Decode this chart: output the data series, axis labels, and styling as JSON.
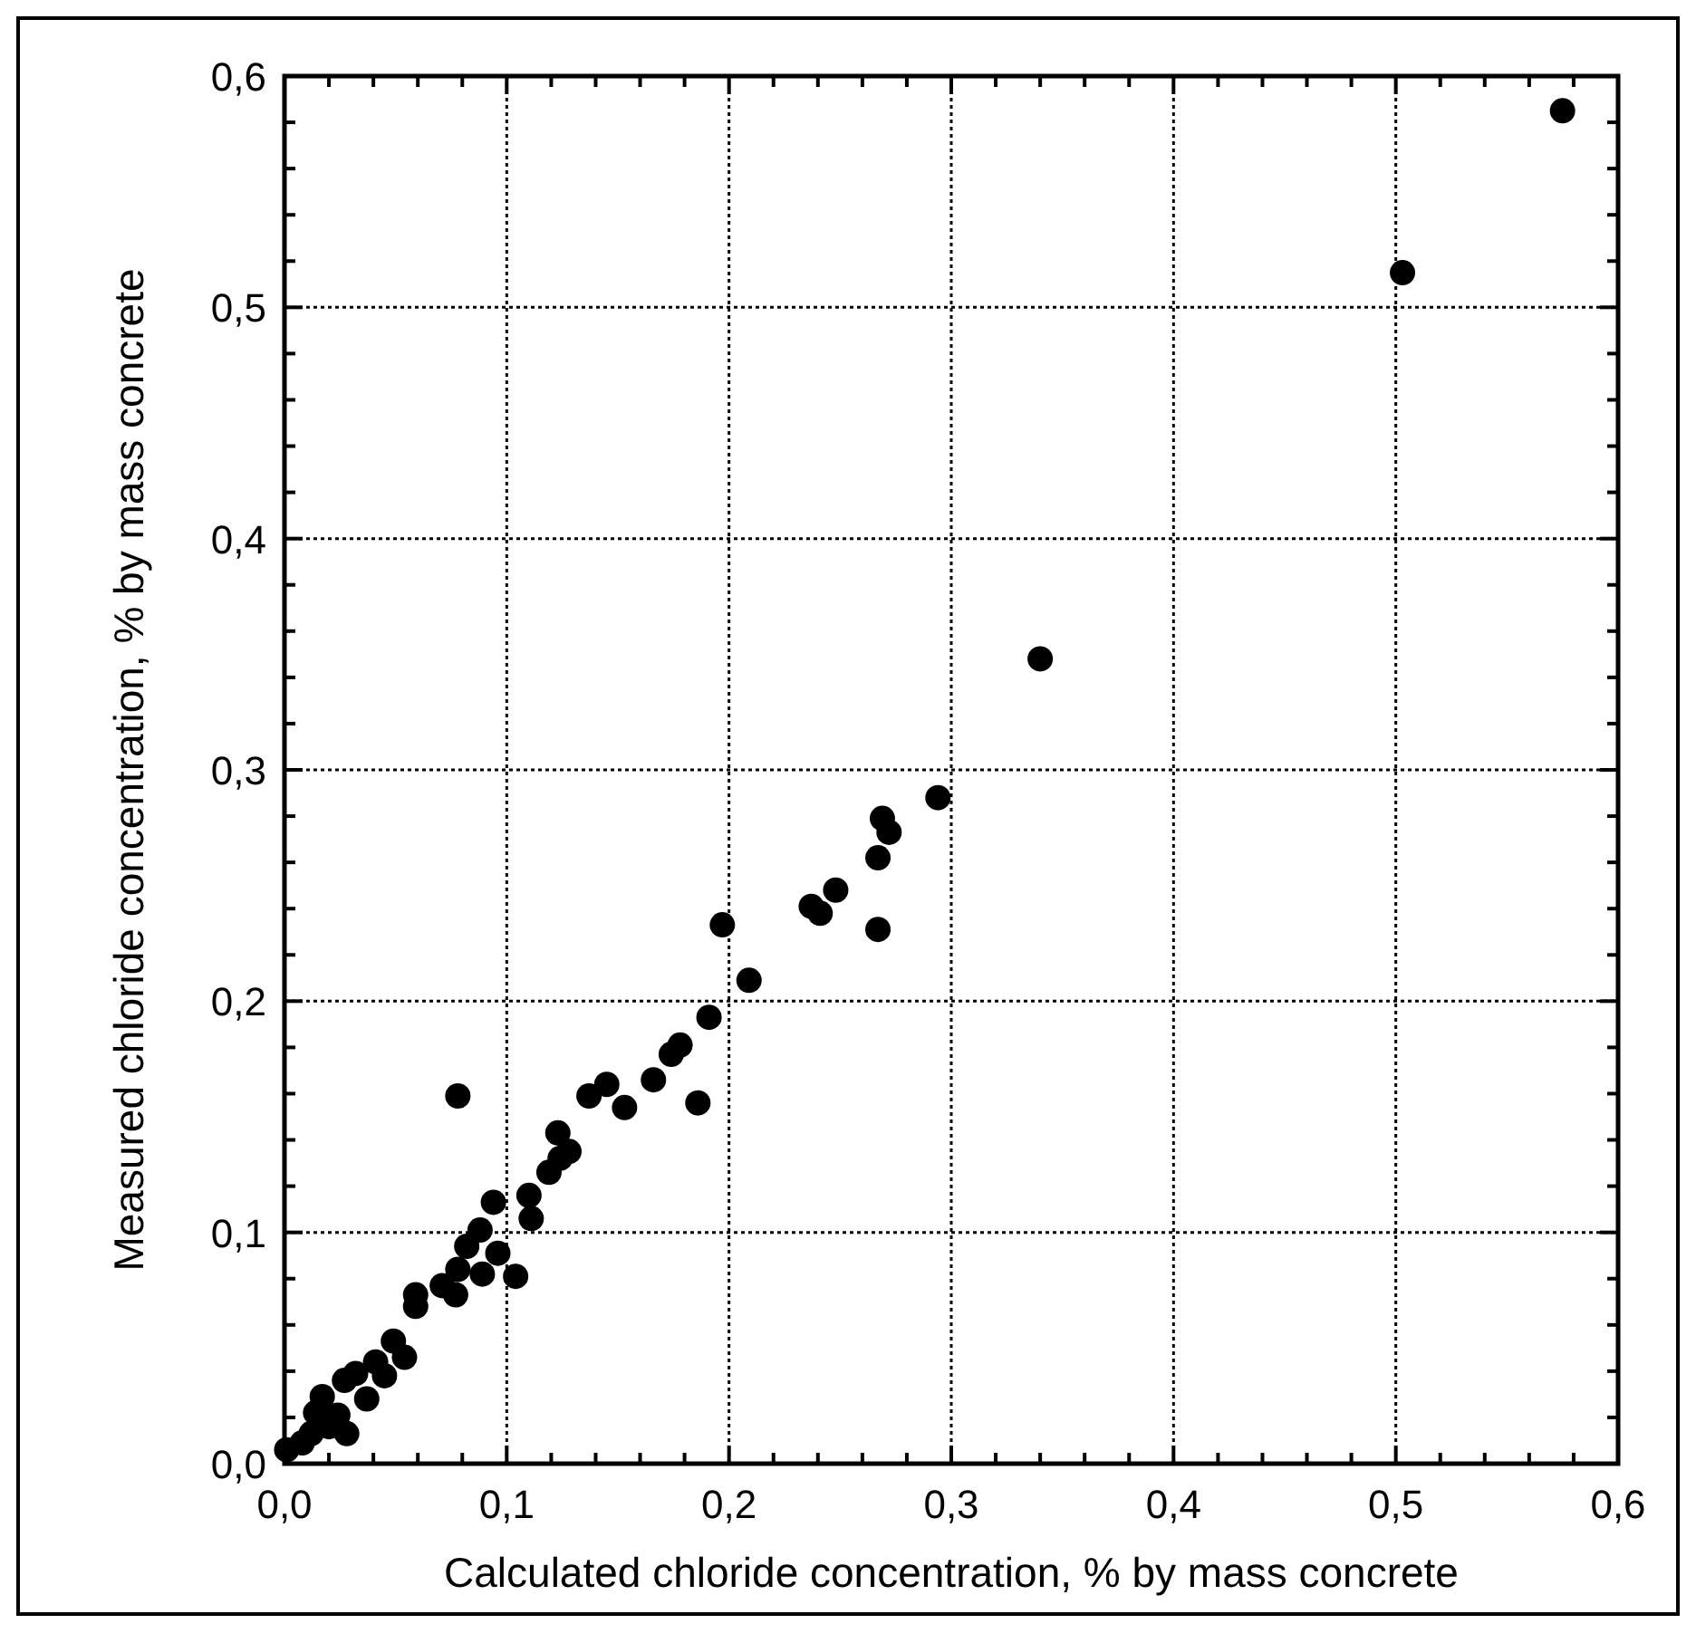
{
  "chart_data": {
    "type": "scatter",
    "xlabel": "Calculated chloride concentration, % by mass concrete",
    "ylabel": "Measured chloride concentration, % by mass concrete",
    "xlim": [
      0,
      0.6
    ],
    "ylim": [
      0,
      0.6
    ],
    "xticks": [
      {
        "value": 0,
        "label": "0,0"
      },
      {
        "value": 0.02,
        "label": null
      },
      {
        "value": 0.04,
        "label": null
      },
      {
        "value": 0.06,
        "label": null
      },
      {
        "value": 0.08,
        "label": null
      },
      {
        "value": 0.1,
        "label": "0,1"
      },
      {
        "value": 0.12,
        "label": null
      },
      {
        "value": 0.14,
        "label": null
      },
      {
        "value": 0.16,
        "label": null
      },
      {
        "value": 0.18,
        "label": null
      },
      {
        "value": 0.2,
        "label": "0,2"
      },
      {
        "value": 0.22,
        "label": null
      },
      {
        "value": 0.24,
        "label": null
      },
      {
        "value": 0.26,
        "label": null
      },
      {
        "value": 0.28,
        "label": null
      },
      {
        "value": 0.3,
        "label": "0,3"
      },
      {
        "value": 0.32,
        "label": null
      },
      {
        "value": 0.34,
        "label": null
      },
      {
        "value": 0.36,
        "label": null
      },
      {
        "value": 0.38,
        "label": null
      },
      {
        "value": 0.4,
        "label": "0,4"
      },
      {
        "value": 0.42,
        "label": null
      },
      {
        "value": 0.44,
        "label": null
      },
      {
        "value": 0.46,
        "label": null
      },
      {
        "value": 0.48,
        "label": null
      },
      {
        "value": 0.5,
        "label": "0,5"
      },
      {
        "value": 0.52,
        "label": null
      },
      {
        "value": 0.54,
        "label": null
      },
      {
        "value": 0.56,
        "label": null
      },
      {
        "value": 0.58,
        "label": null
      },
      {
        "value": 0.6,
        "label": "0,6"
      }
    ],
    "yticks": [
      {
        "value": 0,
        "label": "0,0"
      },
      {
        "value": 0.02,
        "label": null
      },
      {
        "value": 0.04,
        "label": null
      },
      {
        "value": 0.06,
        "label": null
      },
      {
        "value": 0.08,
        "label": null
      },
      {
        "value": 0.1,
        "label": "0,1"
      },
      {
        "value": 0.12,
        "label": null
      },
      {
        "value": 0.14,
        "label": null
      },
      {
        "value": 0.16,
        "label": null
      },
      {
        "value": 0.18,
        "label": null
      },
      {
        "value": 0.2,
        "label": "0,2"
      },
      {
        "value": 0.22,
        "label": null
      },
      {
        "value": 0.24,
        "label": null
      },
      {
        "value": 0.26,
        "label": null
      },
      {
        "value": 0.28,
        "label": null
      },
      {
        "value": 0.3,
        "label": "0,3"
      },
      {
        "value": 0.32,
        "label": null
      },
      {
        "value": 0.34,
        "label": null
      },
      {
        "value": 0.36,
        "label": null
      },
      {
        "value": 0.38,
        "label": null
      },
      {
        "value": 0.4,
        "label": "0,4"
      },
      {
        "value": 0.42,
        "label": null
      },
      {
        "value": 0.44,
        "label": null
      },
      {
        "value": 0.46,
        "label": null
      },
      {
        "value": 0.48,
        "label": null
      },
      {
        "value": 0.5,
        "label": "0,5"
      },
      {
        "value": 0.52,
        "label": null
      },
      {
        "value": 0.54,
        "label": null
      },
      {
        "value": 0.56,
        "label": null
      },
      {
        "value": 0.58,
        "label": null
      },
      {
        "value": 0.6,
        "label": "0,6"
      }
    ],
    "grid": true,
    "marker": "circle",
    "line_style": "dotted",
    "series": [
      {
        "color": "#000000",
        "x": [
          0.575,
          0.503,
          0.34,
          0.294,
          0.269,
          0.272,
          0.267,
          0.267,
          0.248,
          0.237,
          0.241,
          0.197,
          0.209,
          0.191,
          0.186,
          0.178,
          0.174,
          0.166,
          0.153,
          0.145,
          0.137,
          0.078,
          0.123,
          0.128,
          0.124,
          0.119,
          0.11,
          0.111,
          0.104,
          0.094,
          0.096,
          0.088,
          0.089,
          0.082,
          0.078,
          0.077,
          0.071,
          0.059,
          0.059,
          0.049,
          0.054,
          0.045,
          0.041,
          0.032,
          0.027,
          0.037,
          0.017,
          0.024,
          0.028,
          0.02,
          0.012,
          0.008,
          0.001,
          0.014
        ],
        "values": [
          0.585,
          0.515,
          0.348,
          0.288,
          0.279,
          0.273,
          0.262,
          0.231,
          0.248,
          0.241,
          0.238,
          0.233,
          0.209,
          0.193,
          0.156,
          0.181,
          0.177,
          0.166,
          0.154,
          0.164,
          0.159,
          0.159,
          0.143,
          0.135,
          0.132,
          0.126,
          0.116,
          0.106,
          0.081,
          0.113,
          0.091,
          0.101,
          0.082,
          0.094,
          0.084,
          0.073,
          0.077,
          0.073,
          0.068,
          0.053,
          0.046,
          0.038,
          0.044,
          0.039,
          0.036,
          0.028,
          0.029,
          0.021,
          0.013,
          0.016,
          0.013,
          0.009,
          0.006,
          0.022
        ]
      }
    ]
  }
}
